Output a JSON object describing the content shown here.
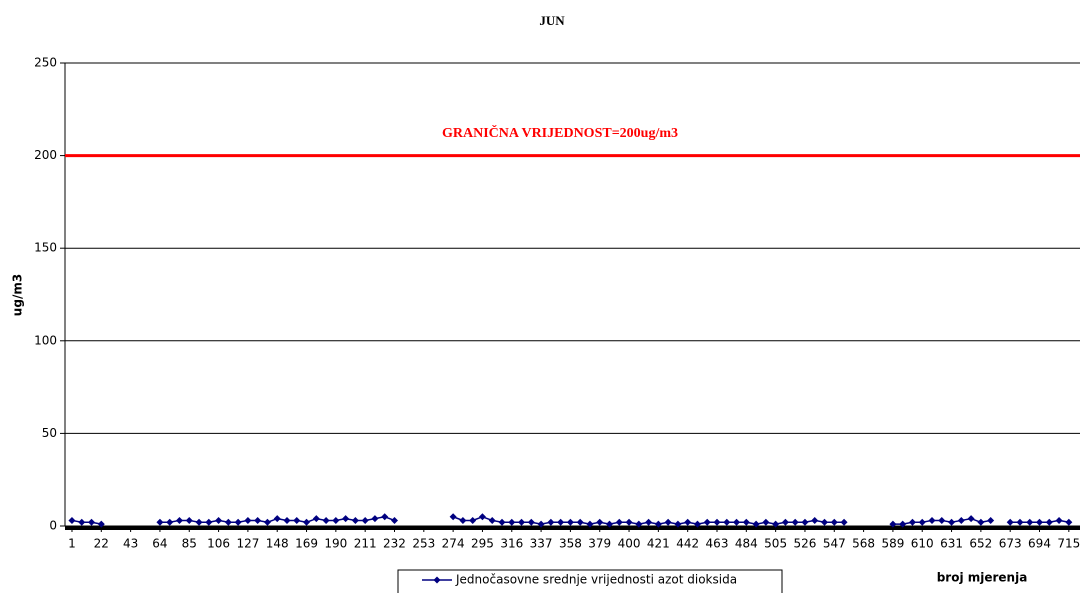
{
  "chart_data": {
    "type": "line",
    "title": "JUN",
    "ylabel": "ug/m3",
    "xlabel": "broj mjerenja",
    "x": [
      1,
      8,
      15,
      22,
      29,
      36,
      43,
      50,
      57,
      64,
      71,
      78,
      85,
      92,
      99,
      106,
      113,
      120,
      127,
      134,
      141,
      148,
      155,
      162,
      169,
      176,
      183,
      190,
      197,
      204,
      211,
      218,
      225,
      232,
      239,
      246,
      253,
      260,
      267,
      274,
      281,
      288,
      295,
      302,
      309,
      316,
      323,
      330,
      337,
      344,
      351,
      358,
      365,
      372,
      379,
      386,
      393,
      400,
      407,
      414,
      421,
      428,
      435,
      442,
      449,
      456,
      463,
      470,
      477,
      484,
      491,
      498,
      505,
      512,
      519,
      526,
      533,
      540,
      547,
      554,
      561,
      568,
      575,
      582,
      589,
      596,
      603,
      610,
      617,
      624,
      631,
      638,
      645,
      652,
      659,
      666,
      673,
      680,
      687,
      694,
      701,
      708,
      715
    ],
    "series": [
      {
        "name": "Jednočasovne srednje vrijednosti azot dioksida",
        "color": "#000080",
        "values": [
          3,
          2,
          2,
          1,
          null,
          null,
          null,
          null,
          null,
          2,
          2,
          3,
          3,
          2,
          2,
          3,
          2,
          2,
          3,
          3,
          2,
          4,
          3,
          3,
          2,
          4,
          3,
          3,
          4,
          3,
          3,
          4,
          5,
          3,
          null,
          null,
          null,
          null,
          null,
          5,
          3,
          3,
          5,
          3,
          2,
          2,
          2,
          2,
          1,
          2,
          2,
          2,
          2,
          1,
          2,
          1,
          2,
          2,
          1,
          2,
          1,
          2,
          1,
          2,
          1,
          2,
          2,
          2,
          2,
          2,
          1,
          2,
          1,
          2,
          2,
          2,
          3,
          2,
          2,
          2,
          null,
          null,
          null,
          null,
          1,
          1,
          2,
          2,
          3,
          3,
          2,
          3,
          4,
          2,
          3,
          null,
          2,
          2,
          2,
          2,
          2,
          3,
          2
        ]
      }
    ],
    "limit": {
      "value": 200,
      "label": "GRANIČNA VRIJEDNOST=200ug/m3",
      "color": "#ff0000"
    },
    "xlim": [
      -4,
      723
    ],
    "xticks": [
      1,
      22,
      43,
      64,
      85,
      106,
      127,
      148,
      169,
      190,
      211,
      232,
      253,
      274,
      295,
      316,
      337,
      358,
      379,
      400,
      421,
      442,
      463,
      484,
      505,
      526,
      547,
      568,
      589,
      610,
      631,
      652,
      673,
      694,
      715
    ],
    "ylim": [
      0,
      250
    ],
    "yticks": [
      0,
      50,
      100,
      150,
      200,
      250
    ],
    "grid": true
  }
}
